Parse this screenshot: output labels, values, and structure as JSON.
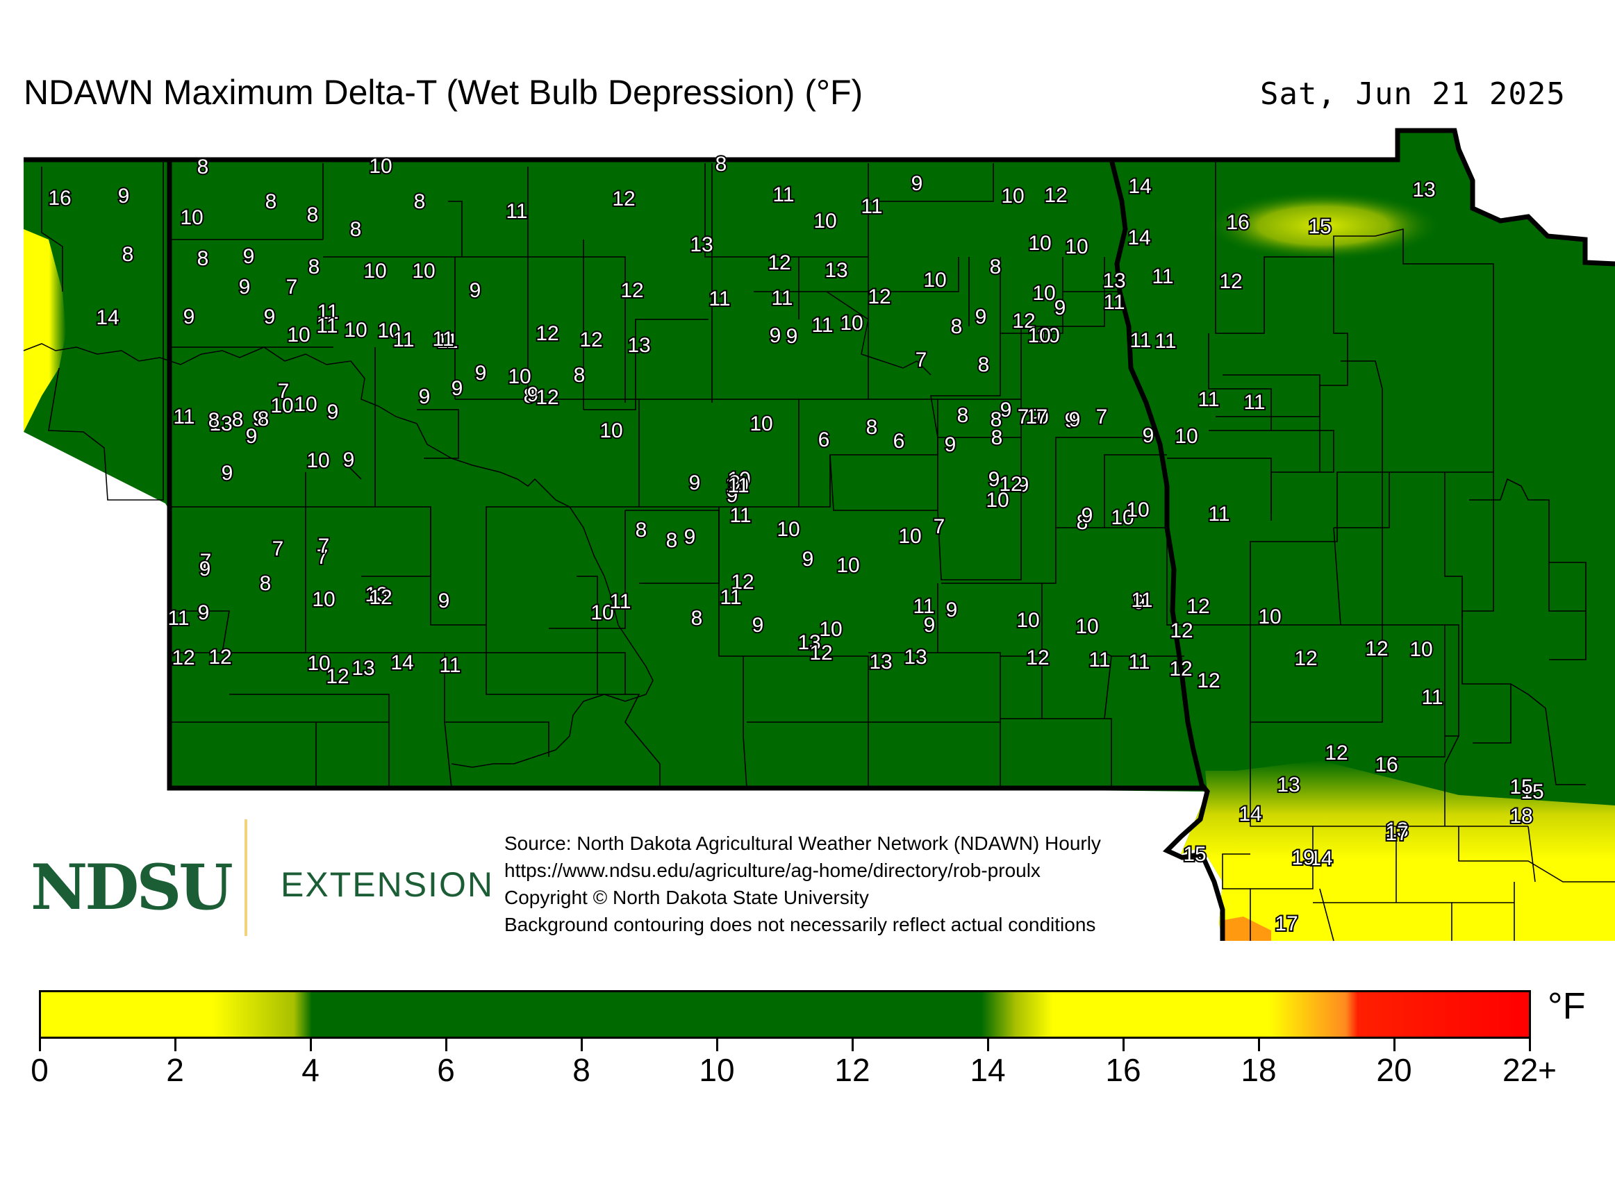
{
  "title": "NDAWN Maximum Delta-T (Wet Bulb Depression) (°F)",
  "date": "Sat, Jun 21 2025",
  "logo": {
    "name": "NDSU",
    "divider": "",
    "extension": "EXTENSION"
  },
  "source_lines": [
    "Source: North Dakota Agricultural Weather Network (NDAWN) Hourly",
    "https://www.ndsu.edu/agriculture/ag-home/directory/rob-proulx",
    "Copyright © North Dakota State University",
    "Background contouring does not necessarily reflect actual conditions"
  ],
  "colorbar": {
    "unit": "°F",
    "ticks": [
      "0",
      "2",
      "4",
      "6",
      "8",
      "10",
      "12",
      "14",
      "16",
      "18",
      "20",
      "22+"
    ],
    "colors": {
      "low": "#ffff00",
      "mid": "#006a00",
      "high": "#ffff00",
      "hot": "#ff8a20",
      "max": "#ff0000"
    }
  },
  "colors": {
    "land": "#006a00",
    "warm": "#ffff00",
    "border": "#000000"
  },
  "station_values": [
    "8",
    "10",
    "8",
    "16",
    "9",
    "10",
    "8",
    "8",
    "8",
    "8",
    "11",
    "12",
    "11",
    "9",
    "11",
    "12",
    "10",
    "14",
    "13",
    "10",
    "8",
    "9",
    "8",
    "10",
    "10",
    "8",
    "13",
    "12",
    "13",
    "10",
    "10",
    "14",
    "16",
    "15",
    "9",
    "7",
    "9",
    "11",
    "12",
    "11",
    "12",
    "10",
    "8",
    "13",
    "11",
    "14",
    "9",
    "9",
    "11",
    "10",
    "11",
    "10",
    "10",
    "11",
    "12",
    "9",
    "13",
    "12",
    "8",
    "10",
    "11",
    "12",
    "11",
    "11",
    "11",
    "11",
    "9",
    "11",
    "10",
    "12",
    "10",
    "9",
    "7",
    "8",
    "9",
    "10",
    "9",
    "8",
    "9",
    "8",
    "9",
    "10",
    "9",
    "11",
    "13",
    "9",
    "9",
    "10",
    "10",
    "12",
    "8",
    "7",
    "9",
    "8",
    "8",
    "10",
    "9",
    "8",
    "9",
    "9",
    "10",
    "9",
    "10",
    "9",
    "10",
    "9",
    "9",
    "8",
    "7",
    "6",
    "6",
    "8",
    "7",
    "8",
    "7",
    "9",
    "11",
    "11",
    "7",
    "7",
    "7",
    "9",
    "8",
    "9",
    "10",
    "9",
    "8",
    "10",
    "9",
    "10",
    "11",
    "10",
    "11",
    "9",
    "10",
    "9",
    "8",
    "7",
    "12",
    "11",
    "10",
    "7",
    "9",
    "9",
    "12",
    "10",
    "8",
    "9",
    "10",
    "10",
    "11",
    "9",
    "11",
    "10",
    "13",
    "12",
    "9",
    "8",
    "9",
    "10",
    "11",
    "9",
    "9",
    "10",
    "10",
    "9",
    "12",
    "11",
    "12",
    "10",
    "12",
    "12",
    "10",
    "12",
    "13",
    "14",
    "11",
    "10",
    "11",
    "13",
    "12",
    "13",
    "13",
    "12",
    "11",
    "11",
    "12",
    "12",
    "12",
    "12",
    "10",
    "11",
    "12",
    "16",
    "15",
    "13",
    "14",
    "14",
    "15",
    "18",
    "13",
    "15",
    "19",
    "17",
    "17"
  ]
}
